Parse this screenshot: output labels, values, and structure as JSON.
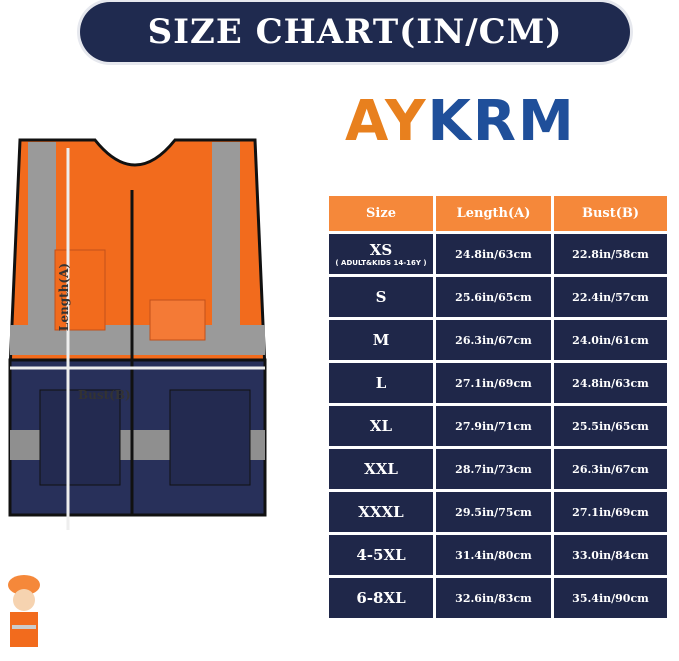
{
  "title": "SIZE CHART(IN/CM)",
  "brand": {
    "part1": "AY",
    "part2": "KRM"
  },
  "vest_labels": {
    "length": "Length(A)",
    "bust": "Bust(B)"
  },
  "colors": {
    "orange": "#f5883a",
    "navy": "#1f2749"
  },
  "table": {
    "headers": [
      "Size",
      "Length(A)",
      "Bust(B)"
    ],
    "rows": [
      {
        "size": "XS",
        "note": "( ADULT&KIDS 14-16Y )",
        "length": "24.8in/63cm",
        "bust": "22.8in/58cm"
      },
      {
        "size": "S",
        "length": "25.6in/65cm",
        "bust": "22.4in/57cm"
      },
      {
        "size": "M",
        "length": "26.3in/67cm",
        "bust": "24.0in/61cm"
      },
      {
        "size": "L",
        "length": "27.1in/69cm",
        "bust": "24.8in/63cm"
      },
      {
        "size": "XL",
        "length": "27.9in/71cm",
        "bust": "25.5in/65cm"
      },
      {
        "size": "XXL",
        "length": "28.7in/73cm",
        "bust": "26.3in/67cm"
      },
      {
        "size": "XXXL",
        "length": "29.5in/75cm",
        "bust": "27.1in/69cm"
      },
      {
        "size": "4-5XL",
        "length": "31.4in/80cm",
        "bust": "33.0in/84cm"
      },
      {
        "size": "6-8XL",
        "length": "32.6in/83cm",
        "bust": "35.4in/90cm"
      }
    ]
  }
}
